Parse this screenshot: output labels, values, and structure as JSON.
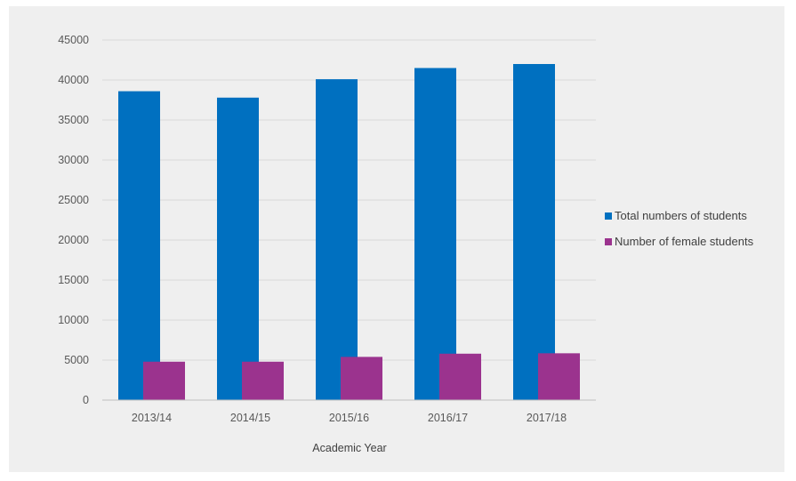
{
  "chart_data": {
    "type": "bar",
    "title": "",
    "xlabel": "Academic Year",
    "ylabel": "",
    "categories": [
      "2013/14",
      "2014/15",
      "2015/16",
      "2016/17",
      "2017/18"
    ],
    "series": [
      {
        "name": "Total numbers of students",
        "color": "#0070c0",
        "values": [
          38600,
          37800,
          40100,
          41500,
          42000
        ]
      },
      {
        "name": "Number of female students",
        "color": "#9b338e",
        "values": [
          4800,
          4800,
          5400,
          5800,
          5850
        ]
      }
    ],
    "ylim": [
      0,
      45000
    ],
    "yticks": [
      "0",
      "5000",
      "10000",
      "15000",
      "20000",
      "25000",
      "30000",
      "35000",
      "40000",
      "45000"
    ],
    "grid": true,
    "legend_position": "right"
  }
}
